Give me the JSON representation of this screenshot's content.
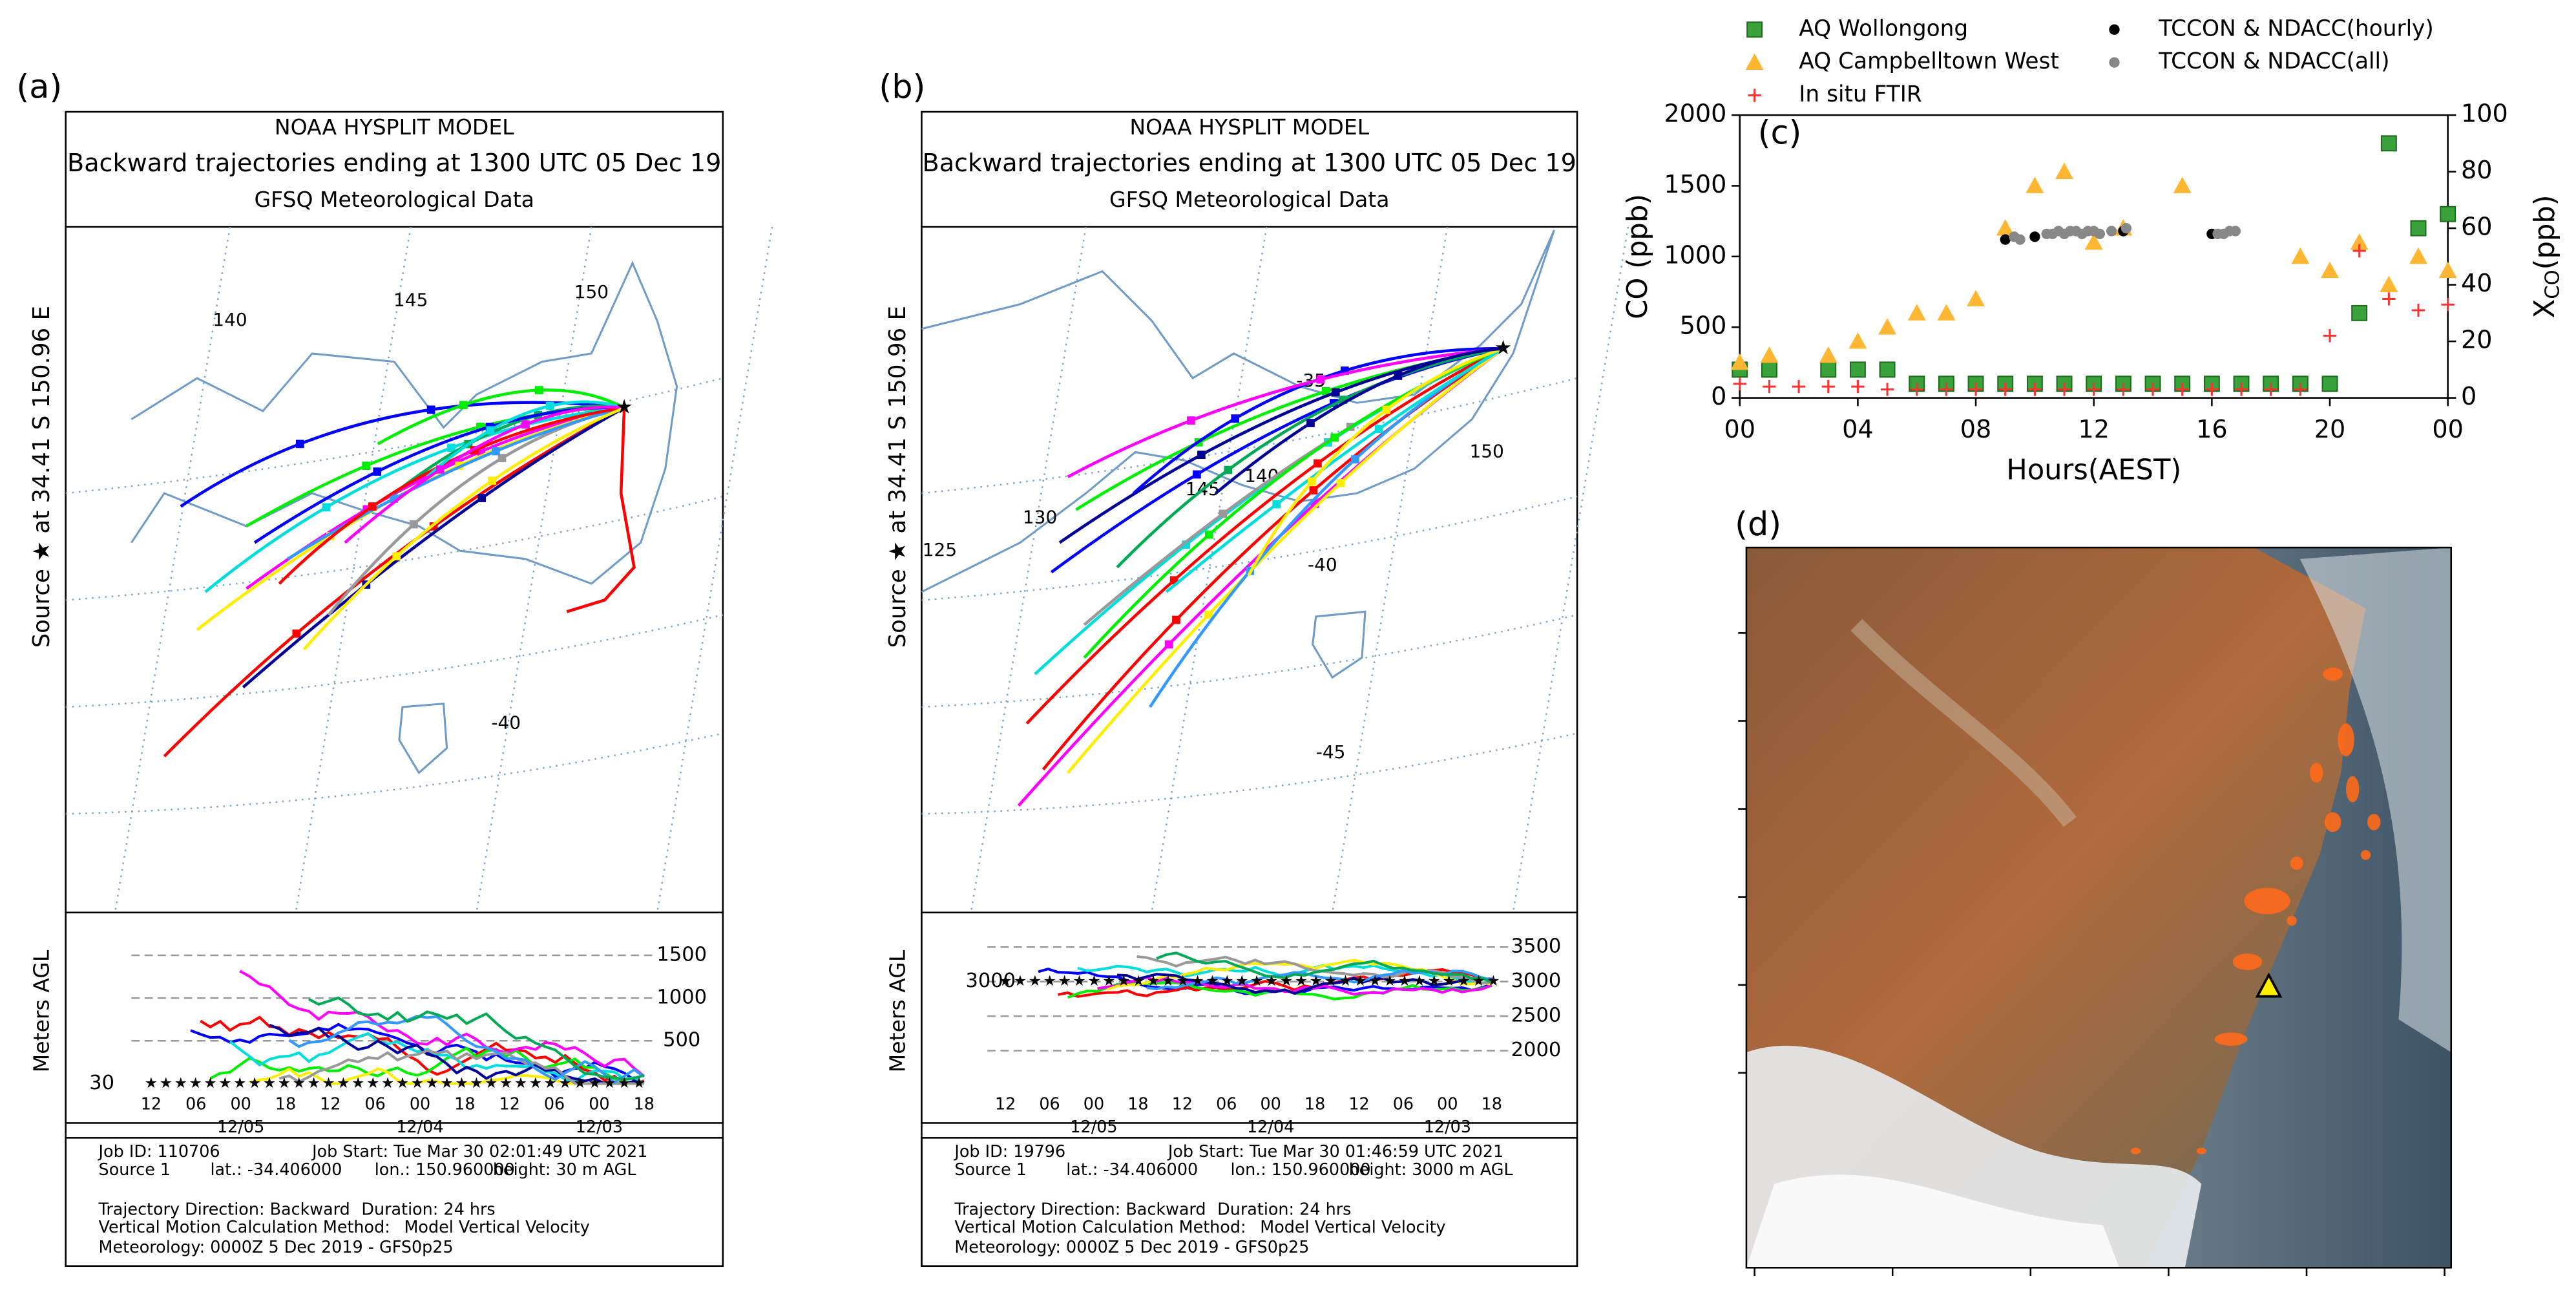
{
  "panel_labels": [
    "(a)",
    "(b)",
    "(c)",
    "(d)"
  ],
  "trajectory_panels": [
    {
      "title": [
        "NOAA HYSPLIT MODEL",
        "Backward trajectories ending at 1300 UTC 05 Dec 19",
        "GFSQ Meteorological Data"
      ],
      "source_label": "Source ★ at  34.41 S  150.96 E",
      "map_labels": [
        "140",
        "145",
        "150",
        "-40"
      ],
      "height_axis_label": "Meters AGL",
      "height_labels": [
        "1500",
        "1000",
        "500"
      ],
      "release_height_label": "30",
      "time_labels": [
        "12",
        "06",
        "00",
        "18",
        "12",
        "06",
        "00",
        "18",
        "12",
        "06",
        "00",
        "18"
      ],
      "date_labels": [
        "12/05",
        "12/04",
        "12/03"
      ],
      "footer": [
        "Job ID: 110706",
        "Job Start: Tue Mar 30 02:01:49 UTC 2021",
        "Source 1",
        "lat.: -34.406000",
        "lon.: 150.960000",
        "height: 30 m AGL",
        "Trajectory Direction: Backward",
        "Duration: 24 hrs",
        "Vertical Motion Calculation Method:",
        "Model Vertical Velocity",
        "Meteorology: 0000Z  5 Dec 2019 - GFS0p25"
      ]
    },
    {
      "title": [
        "NOAA HYSPLIT MODEL",
        "Backward trajectories ending at 1300 UTC 05 Dec 19",
        "GFSQ Meteorological Data"
      ],
      "source_label": "Source ★ at  34.41 S  150.96 E",
      "map_labels": [
        "-35",
        "130",
        "125",
        "145",
        "140",
        "150",
        "-40",
        "-45"
      ],
      "height_axis_label": "Meters AGL",
      "height_labels": [
        "3500",
        "3000",
        "2500",
        "2000"
      ],
      "release_height_label": "3000",
      "time_labels": [
        "12",
        "06",
        "00",
        "18",
        "12",
        "06",
        "00",
        "18",
        "12",
        "06",
        "00",
        "18"
      ],
      "date_labels": [
        "12/05",
        "12/04",
        "12/03"
      ],
      "footer": [
        "Job ID: 19796",
        "Job Start: Tue Mar 30 01:46:59 UTC 2021",
        "Source 1",
        "lat.: -34.406000",
        "lon.: 150.960000",
        "height: 3000 m AGL",
        "Trajectory Direction: Backward",
        "Duration: 24 hrs",
        "Vertical Motion Calculation Method:",
        "Model Vertical Velocity",
        "Meteorology: 0000Z  5 Dec 2019 - GFS0p25"
      ]
    }
  ],
  "chart_data": {
    "type": "scatter",
    "xlabel": "Hours(AEST)",
    "ylabel": "CO (ppb)",
    "y2label": {
      "main": "X",
      "sub": "CO",
      "unit": "(ppb)"
    },
    "xlim": [
      0,
      24
    ],
    "xticks": [
      {
        "value": 0,
        "label": "00"
      },
      {
        "value": 4,
        "label": "04"
      },
      {
        "value": 8,
        "label": "08"
      },
      12,
      16,
      20,
      {
        "value": 24,
        "label": "00"
      }
    ],
    "ylim": [
      0,
      2000
    ],
    "yticks": [
      0,
      500,
      1000,
      1500,
      2000
    ],
    "y2lim": [
      0,
      100
    ],
    "y2ticks": [
      0,
      20,
      40,
      60,
      80,
      100
    ],
    "series": [
      {
        "name": "AQ Wollongong",
        "color": "#3aa23a",
        "marker": "square",
        "x": [
          0,
          1,
          3,
          4,
          5,
          6,
          7,
          8,
          9,
          10,
          11,
          12,
          13,
          14,
          15,
          16,
          17,
          18,
          19,
          20,
          21,
          22,
          23,
          24
        ],
        "values": [
          200,
          200,
          200,
          200,
          200,
          100,
          100,
          100,
          100,
          100,
          100,
          100,
          100,
          100,
          100,
          100,
          100,
          100,
          100,
          100,
          600,
          1800,
          1200,
          1300
        ]
      },
      {
        "name": "AQ Campbelltown West",
        "color": "#ffb632",
        "marker": "triangle",
        "x": [
          0,
          1,
          3,
          4,
          5,
          6,
          7,
          8,
          9,
          10,
          11,
          12,
          13,
          15,
          19,
          20,
          21,
          22,
          23,
          24
        ],
        "values": [
          250,
          300,
          300,
          400,
          500,
          600,
          600,
          700,
          1200,
          1500,
          1600,
          1100,
          1200,
          1500,
          1000,
          900,
          1100,
          800,
          1000,
          900
        ]
      },
      {
        "name": "In situ FTIR",
        "color": "#ff3030",
        "marker": "plus",
        "axis": "y2",
        "x": [
          0,
          1,
          2,
          3,
          4,
          5,
          6,
          7,
          8,
          9,
          10,
          11,
          12,
          13,
          14,
          15,
          16,
          17,
          18,
          19,
          20,
          21,
          22,
          23,
          24
        ],
        "values": [
          5,
          4,
          4,
          4,
          4,
          3,
          3,
          3,
          3,
          3,
          3,
          3,
          3,
          3,
          3,
          3,
          3,
          3,
          3,
          3,
          22,
          52,
          35,
          31,
          33
        ]
      },
      {
        "name": "TCCON & NDACC(hourly)",
        "color": "#000000",
        "marker": "circle",
        "axis": "y2",
        "x": [
          9,
          10,
          13,
          16
        ],
        "values": [
          56,
          57,
          59,
          58
        ]
      },
      {
        "name": "TCCON & NDACC(all)",
        "color": "#888888",
        "marker": "circle",
        "axis": "y2",
        "x": [
          9.3,
          9.5,
          10.4,
          10.6,
          10.8,
          11,
          11.2,
          11.4,
          11.6,
          11.8,
          12,
          12.2,
          12.6,
          13.1,
          16.2,
          16.4,
          16.6,
          16.8
        ],
        "values": [
          57,
          56,
          58,
          58,
          59,
          58,
          59,
          59,
          58,
          59,
          59,
          58,
          59,
          60,
          58,
          58,
          59,
          59
        ]
      }
    ]
  }
}
